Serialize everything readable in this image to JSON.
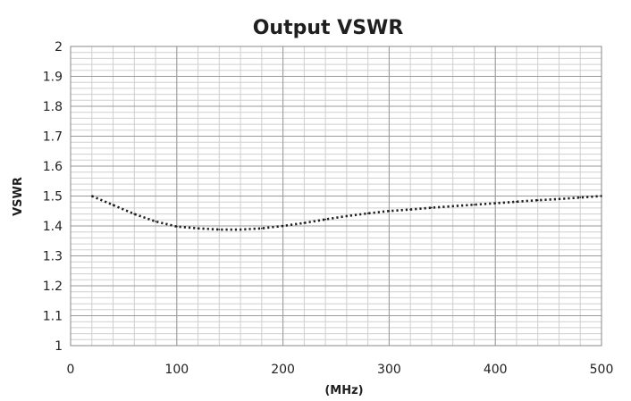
{
  "chart_data": {
    "type": "line",
    "title": "Output VSWR",
    "xlabel": "(MHz)",
    "ylabel": "VSWR",
    "xlim": [
      0,
      500
    ],
    "ylim": [
      1,
      2
    ],
    "x_ticks": [
      0,
      100,
      200,
      300,
      400,
      500
    ],
    "x_tick_labels": [
      "0",
      "100",
      "200",
      "300",
      "400",
      "500"
    ],
    "y_ticks": [
      1,
      1.1,
      1.2,
      1.3,
      1.4,
      1.5,
      1.6,
      1.7,
      1.8,
      1.9,
      2
    ],
    "y_tick_labels": [
      "1",
      "1.1",
      "1.2",
      "1.3",
      "1.4",
      "1.5",
      "1.6",
      "1.7",
      "1.8",
      "1.9",
      "2"
    ],
    "x_minor_step": 20,
    "y_minor_step": 0.02,
    "grid": true,
    "line_style": "dotted",
    "series": [
      {
        "x": [
          20,
          40,
          60,
          80,
          100,
          120,
          140,
          160,
          180,
          200,
          220,
          240,
          260,
          280,
          300,
          320,
          340,
          360,
          380,
          400,
          420,
          440,
          460,
          480,
          500
        ],
        "values": [
          1.5,
          1.47,
          1.44,
          1.415,
          1.398,
          1.392,
          1.388,
          1.388,
          1.392,
          1.4,
          1.41,
          1.422,
          1.433,
          1.442,
          1.45,
          1.455,
          1.461,
          1.466,
          1.471,
          1.476,
          1.481,
          1.486,
          1.49,
          1.495,
          1.5
        ]
      }
    ],
    "colors": {
      "series": "#1f1f1f",
      "major_grid": "#9a9a9a",
      "minor_grid": "#cfcfcf",
      "axis": "#8a8a8a",
      "text": "#1f1f1f"
    }
  }
}
